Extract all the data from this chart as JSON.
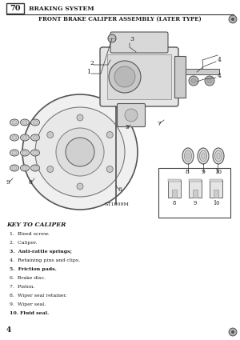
{
  "page_number": "70",
  "header_title": "BRAKING SYSTEM",
  "assembly_title": "FRONT BRAKE CALIPER ASSEMBLY (LATER TYPE)",
  "key_title": "KEY TO CALIPER",
  "key_items": [
    "1.  Bleed screw.",
    "2.  Caliper.",
    "3.  Anti-rattle springs;",
    "4.  Retaining pins and clips.",
    "5.  Friction pads.",
    "6.  Brake disc.",
    "7.  Piston.",
    "8.  Wiper seal retainer.",
    "9.  Wiper seal.",
    "10. Fluid seal."
  ],
  "figure_ref": "ST1809M",
  "page_bottom": "4",
  "bg_color": "#ffffff",
  "text_color": "#1a1a1a",
  "line_color": "#333333",
  "bold_items": [
    3,
    5,
    10
  ]
}
